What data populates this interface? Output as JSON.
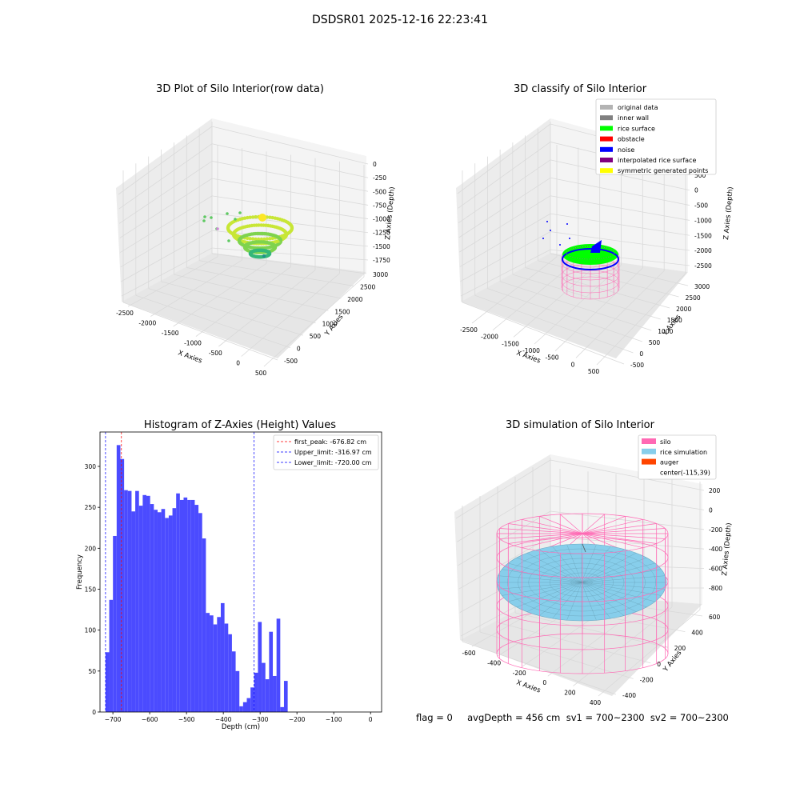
{
  "suptitle": "DSDSR01 2025-12-16 22:23:41",
  "status": "flag = 0     avgDepth = 456 cm  sv1 = 700~2300  sv2 = 700~2300",
  "colors": {
    "axis_pane": "#f2f2f2",
    "grid": "#d9d9d9",
    "histogram_bar": "#4b4bff",
    "first_peak_line": "#ff0000",
    "limit_line": "#0000ff",
    "silo_wire": "#ff69b4",
    "rice_sim": "#87ceeb",
    "rice_surface": "#00ff00",
    "noise": "#0000ff"
  },
  "chart_data": [
    {
      "id": "raw",
      "type": "scatter3d",
      "title": "3D Plot of Silo Interior(row data)",
      "xlabel": "X Axies",
      "ylabel": "Y Axies",
      "zlabel": "Z Axies (Depth)",
      "x_ticks": [
        "-2500",
        "-2000",
        "-1500",
        "-1000",
        "-500",
        "0",
        "500"
      ],
      "y_ticks": [
        "-500",
        "0",
        "500",
        "1000",
        "1500",
        "2000",
        "2500",
        "3000"
      ],
      "z_ticks": [
        "0",
        "-250",
        "-500",
        "-750",
        "-1000",
        "-1250",
        "-1500",
        "-1750"
      ],
      "xlim": [
        -2700,
        600
      ],
      "ylim": [
        -500,
        3200
      ],
      "zlim": [
        -1900,
        100
      ]
    },
    {
      "id": "classify",
      "type": "scatter3d",
      "title": "3D classify of Silo Interior",
      "xlabel": "X Axies",
      "ylabel": "Y Axies",
      "zlabel": "Z Axies (Depth)",
      "x_ticks": [
        "-2500",
        "-2000",
        "-1500",
        "-1000",
        "-500",
        "0",
        "500"
      ],
      "y_ticks": [
        "-500",
        "0",
        "500",
        "1000",
        "1500",
        "2000",
        "2500",
        "3000"
      ],
      "z_ticks": [
        "1000",
        "500",
        "0",
        "-500",
        "-1000",
        "-1500",
        "-2000",
        "-2500"
      ],
      "legend": [
        {
          "name": "original data",
          "color": "#b3b3b3"
        },
        {
          "name": "inner wall",
          "color": "#808080"
        },
        {
          "name": "rice surface",
          "color": "#00ff00"
        },
        {
          "name": "obstacle",
          "color": "#ff0000"
        },
        {
          "name": "noise",
          "color": "#0000ff"
        },
        {
          "name": "interpolated rice surface",
          "color": "#800080"
        },
        {
          "name": "symmetric generated points",
          "color": "#ffff00"
        }
      ],
      "legend_loc": "upper right"
    },
    {
      "id": "hist",
      "type": "bar",
      "title": "Histogram of Z-Axies (Height) Values",
      "xlabel": "Depth (cm)",
      "ylabel": "Frequency",
      "bin_start": -720,
      "bin_width": 10.1,
      "counts": [
        73,
        137,
        215,
        326,
        309,
        271,
        270,
        245,
        270,
        252,
        265,
        264,
        254,
        247,
        244,
        248,
        237,
        240,
        249,
        267,
        259,
        262,
        259,
        259,
        253,
        243,
        212,
        121,
        118,
        107,
        116,
        133,
        108,
        95,
        74,
        50,
        7,
        12,
        17,
        30,
        48,
        110,
        60,
        40,
        98,
        44,
        114,
        6,
        38
      ],
      "x_ticks": [
        -700,
        -600,
        -500,
        -400,
        -300,
        -200,
        -100,
        0
      ],
      "y_ticks": [
        0,
        50,
        100,
        150,
        200,
        250,
        300
      ],
      "xlim": [
        -735,
        30
      ],
      "ylim": [
        0,
        342
      ],
      "vlines": [
        {
          "name": "first_peak: -676.82 cm",
          "x": -676.82,
          "color": "#ff0000"
        },
        {
          "name": "Upper_limit: -316.97 cm",
          "x": -316.97,
          "color": "#0000ff"
        },
        {
          "name": "Lower_limit: -720.00 cm",
          "x": -720.0,
          "color": "#0000ff"
        }
      ],
      "legend_loc": "upper right"
    },
    {
      "id": "sim",
      "type": "surface3d",
      "title": "3D simulation of Silo Interior",
      "xlabel": "X Axies",
      "ylabel": "Y Axies",
      "zlabel": "Z Axies (Depth)",
      "x_ticks": [
        "-600",
        "-400",
        "-200",
        "0",
        "200",
        "400"
      ],
      "y_ticks": [
        "-400",
        "-200",
        "0",
        "200",
        "400",
        "600"
      ],
      "z_ticks": [
        "200",
        "0",
        "-200",
        "-400",
        "-600",
        "-800"
      ],
      "legend": [
        {
          "name": "silo",
          "color": "#ff69b4"
        },
        {
          "name": "rice simulation",
          "color": "#87ceeb"
        },
        {
          "name": "auger",
          "color": "#ff4500"
        },
        {
          "name": "center(-115,39)",
          "color": ""
        }
      ],
      "legend_loc": "upper right"
    }
  ]
}
